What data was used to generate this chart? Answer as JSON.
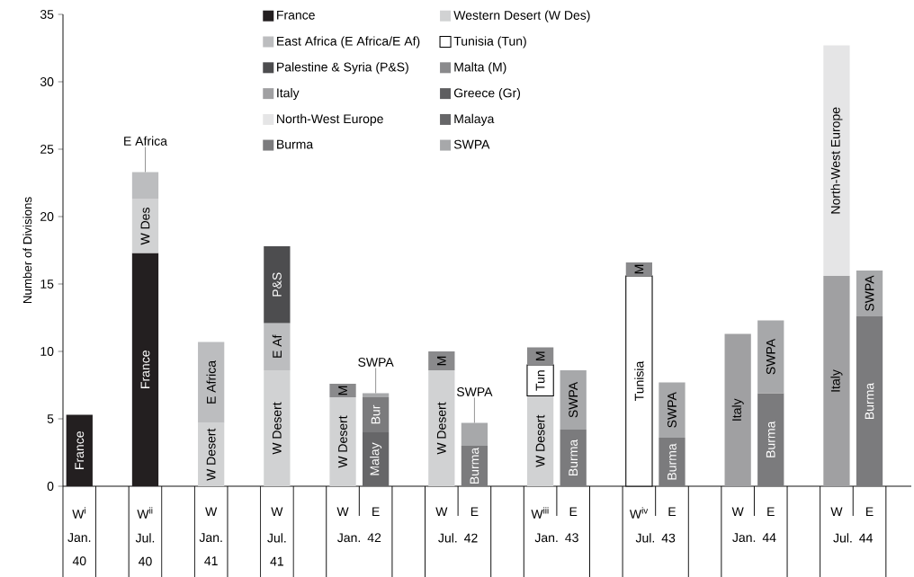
{
  "chart_data": {
    "type": "bar",
    "stacked": true,
    "ylabel": "Number of Divisions",
    "categories": [
      "W$^{i}$",
      null,
      "W$^{ii}$",
      null,
      "W",
      null,
      "W",
      null,
      "W",
      "E",
      null,
      "W",
      "E",
      null,
      "W$^{iii}$",
      "E",
      null,
      "W$^{iv}$",
      "E",
      null,
      "W",
      "E",
      null,
      "W",
      "E"
    ],
    "annotations": [
      "Jan. 40",
      "Jul. 40",
      "Jan. 41",
      "Jul. 41",
      "Jan. 42",
      "Jul. 42",
      "Jan. 43",
      "Jul. 43",
      "Jan. 44",
      "Jul. 44"
    ],
    "ylim": [
      0,
      35
    ],
    "yticks": [
      0,
      5,
      10,
      15,
      20,
      25,
      30,
      35
    ],
    "legend": "top",
    "series": [
      {
        "name": "France",
        "color": "#231f20",
        "values": [
          5.3,
          null,
          17.3,
          null,
          null,
          null,
          null,
          null,
          null,
          null,
          null,
          null,
          null,
          null,
          null,
          null,
          null,
          null,
          null,
          null,
          null,
          null,
          null,
          null,
          null
        ],
        "value_labels": [
          "France",
          null,
          "France",
          null,
          null,
          null,
          null,
          null,
          null,
          null,
          null,
          null,
          null,
          null,
          null,
          null,
          null,
          null,
          null,
          null,
          null,
          null,
          null,
          null,
          null
        ]
      },
      {
        "name": "Western Desert (W Des)",
        "color": "#d1d2d3",
        "values": [
          null,
          null,
          4.0,
          null,
          4.7,
          null,
          8.6,
          null,
          6.6,
          null,
          null,
          8.6,
          null,
          null,
          6.7,
          null,
          null,
          null,
          null,
          null,
          null,
          null,
          null,
          null,
          null
        ],
        "value_labels": [
          null,
          null,
          "W Des",
          null,
          "W Desert",
          null,
          "W Desert",
          null,
          "W Desert",
          null,
          null,
          "W Desert",
          null,
          null,
          "W Desert",
          null,
          null,
          null,
          null,
          null,
          null,
          null,
          null,
          null,
          null
        ]
      },
      {
        "name": "East Africa (E Africa/E Af)",
        "color": "#bcbdbf",
        "values": [
          null,
          null,
          2.0,
          null,
          6.0,
          null,
          3.5,
          null,
          null,
          null,
          null,
          null,
          null,
          null,
          null,
          null,
          null,
          null,
          null,
          null,
          null,
          null,
          null,
          null,
          null
        ],
        "value_labels": [
          null,
          null,
          "E Africa",
          null,
          "E Africa",
          null,
          "E Af",
          null,
          null,
          null,
          null,
          null,
          null,
          null,
          null,
          null,
          null,
          null,
          null,
          null,
          null,
          null,
          null,
          null,
          null
        ]
      },
      {
        "name": "Tunisia (Tun)",
        "color": "#ffffff",
        "values": [
          null,
          null,
          null,
          null,
          null,
          null,
          null,
          null,
          null,
          null,
          null,
          null,
          null,
          null,
          2.3,
          null,
          null,
          15.6,
          null,
          null,
          null,
          null,
          null,
          null,
          null
        ],
        "value_labels": [
          null,
          null,
          null,
          null,
          null,
          null,
          null,
          null,
          null,
          null,
          null,
          null,
          null,
          null,
          "Tun",
          null,
          null,
          "Tunisia",
          null,
          null,
          null,
          null,
          null,
          null,
          null
        ]
      },
      {
        "name": "Palestine & Syria (P&S)",
        "color": "#4d4d4f",
        "values": [
          null,
          null,
          null,
          null,
          null,
          null,
          5.7,
          null,
          null,
          null,
          null,
          null,
          null,
          null,
          null,
          null,
          null,
          null,
          null,
          null,
          null,
          null,
          null,
          null,
          null
        ],
        "value_labels": [
          null,
          null,
          null,
          null,
          null,
          null,
          "P&S",
          null,
          null,
          null,
          null,
          null,
          null,
          null,
          null,
          null,
          null,
          null,
          null,
          null,
          null,
          null,
          null,
          null,
          null
        ]
      },
      {
        "name": "Malta (M)",
        "color": "#8a8a8c",
        "values": [
          null,
          null,
          null,
          null,
          null,
          null,
          null,
          null,
          1.0,
          null,
          null,
          1.4,
          null,
          null,
          1.3,
          null,
          null,
          1.0,
          null,
          null,
          null,
          null,
          null,
          null,
          null
        ],
        "value_labels": [
          null,
          null,
          null,
          null,
          null,
          null,
          null,
          null,
          "M",
          null,
          null,
          "M",
          null,
          null,
          "M",
          null,
          null,
          "M",
          null,
          null,
          null,
          null,
          null,
          null,
          null
        ]
      },
      {
        "name": "Italy",
        "color": "#a0a0a2",
        "values": [
          null,
          null,
          null,
          null,
          null,
          null,
          null,
          null,
          null,
          null,
          null,
          null,
          null,
          null,
          null,
          null,
          null,
          null,
          null,
          null,
          11.3,
          null,
          null,
          15.6,
          null
        ],
        "value_labels": [
          null,
          null,
          null,
          null,
          null,
          null,
          null,
          null,
          null,
          null,
          null,
          null,
          null,
          null,
          null,
          null,
          null,
          null,
          null,
          null,
          "Italy",
          null,
          null,
          "Italy",
          null
        ]
      },
      {
        "name": "Greece (Gr)",
        "color": "#5e5e60",
        "values": [
          null,
          null,
          null,
          null,
          null,
          null,
          null,
          null,
          null,
          null,
          null,
          null,
          null,
          null,
          null,
          null,
          null,
          null,
          null,
          null,
          null,
          null,
          null,
          null,
          null
        ]
      },
      {
        "name": "North-West Europe",
        "color": "#e5e5e6",
        "values": [
          null,
          null,
          null,
          null,
          null,
          null,
          null,
          null,
          null,
          null,
          null,
          null,
          null,
          null,
          null,
          null,
          null,
          null,
          null,
          null,
          null,
          null,
          null,
          17.1,
          null
        ],
        "value_labels": [
          null,
          null,
          null,
          null,
          null,
          null,
          null,
          null,
          null,
          null,
          null,
          null,
          null,
          null,
          null,
          null,
          null,
          null,
          null,
          null,
          null,
          null,
          null,
          "North-West Europe",
          null
        ]
      },
      {
        "name": "Malaya",
        "color": "#666668",
        "values": [
          null,
          null,
          null,
          null,
          null,
          null,
          null,
          null,
          null,
          4.0,
          null,
          null,
          null,
          null,
          null,
          null,
          null,
          null,
          null,
          null,
          null,
          null,
          null,
          null,
          null
        ],
        "value_labels": [
          null,
          null,
          null,
          null,
          null,
          null,
          null,
          null,
          null,
          "Malay",
          null,
          null,
          null,
          null,
          null,
          null,
          null,
          null,
          null,
          null,
          null,
          null,
          null,
          null,
          null
        ]
      },
      {
        "name": "Burma",
        "color": "#7b7b7d",
        "values": [
          null,
          null,
          null,
          null,
          null,
          null,
          null,
          null,
          null,
          2.6,
          null,
          null,
          3.0,
          null,
          null,
          4.2,
          null,
          null,
          3.6,
          null,
          null,
          6.9,
          null,
          null,
          12.6
        ],
        "value_labels": [
          null,
          null,
          null,
          null,
          null,
          null,
          null,
          null,
          null,
          "Bur",
          null,
          null,
          "Burma",
          null,
          null,
          "Burma",
          null,
          null,
          "Burma",
          null,
          null,
          "Burma",
          null,
          null,
          "Burma"
        ]
      },
      {
        "name": "SWPA",
        "color": "#a7a8aa",
        "values": [
          null,
          null,
          null,
          null,
          null,
          null,
          null,
          null,
          null,
          0.3,
          null,
          null,
          1.7,
          null,
          null,
          4.4,
          null,
          null,
          4.1,
          null,
          null,
          5.4,
          null,
          null,
          3.4
        ],
        "value_labels": [
          null,
          null,
          null,
          null,
          null,
          null,
          null,
          null,
          null,
          "SWPA",
          null,
          null,
          "SWPA",
          null,
          null,
          "SWPA",
          null,
          null,
          "SWPA",
          null,
          null,
          "SWPA",
          null,
          null,
          "SWPA"
        ]
      }
    ]
  }
}
